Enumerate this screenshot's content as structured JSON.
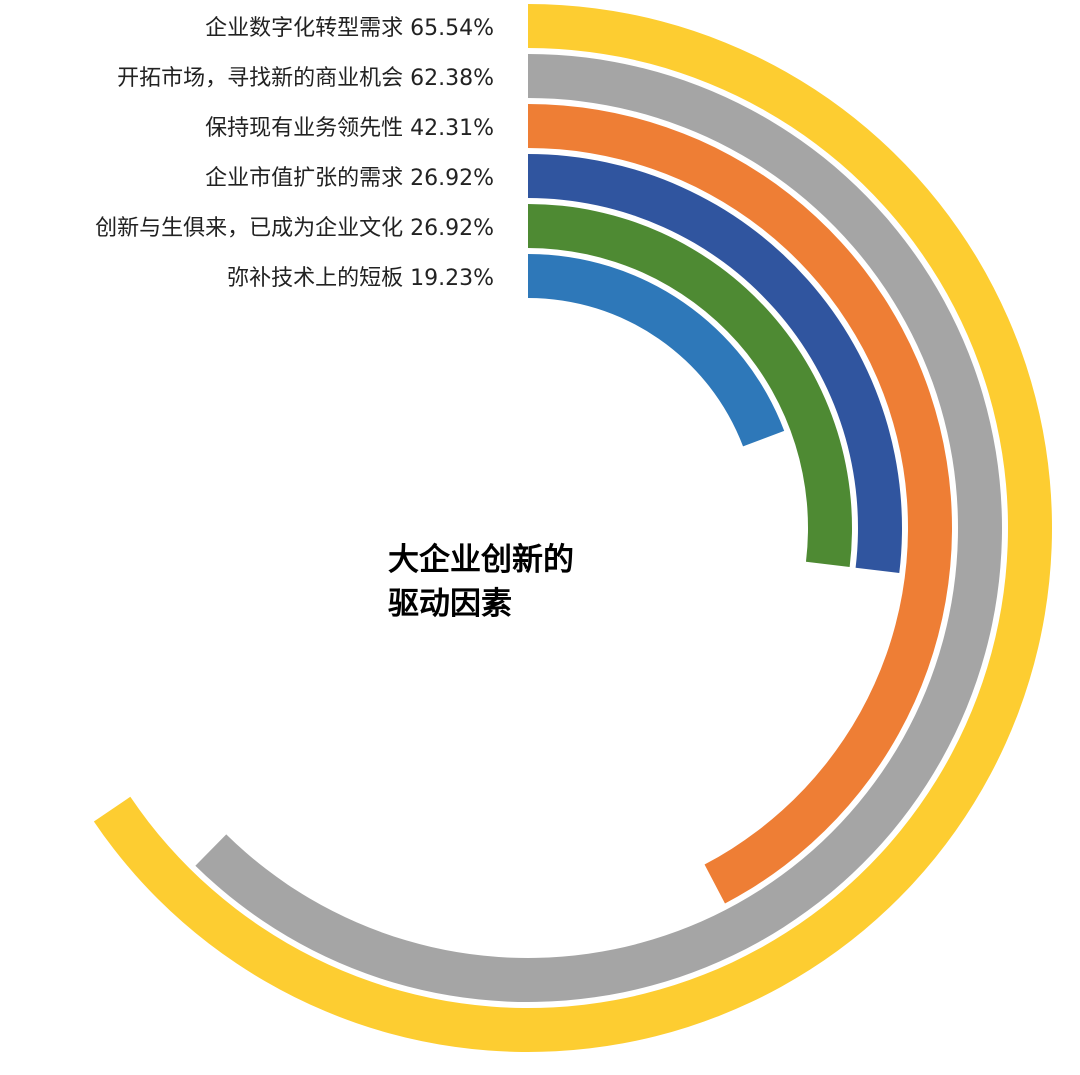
{
  "chart_data": {
    "type": "radial-bar",
    "title": "大企业创新的驱动因素",
    "title_lines": [
      "大企业创新的",
      "驱动因素"
    ],
    "unit": "%",
    "series": [
      {
        "label": "企业数字化转型需求",
        "value": 65.54,
        "value_text": "65.54%",
        "color": "#FDCD31"
      },
      {
        "label": "开拓市场，寻找新的商业机会",
        "value": 62.38,
        "value_text": "62.38%",
        "color": "#A5A5A5"
      },
      {
        "label": "保持现有业务领先性",
        "value": 42.31,
        "value_text": "42.31%",
        "color": "#EE7E35"
      },
      {
        "label": "企业市值扩张的需求",
        "value": 26.92,
        "value_text": "26.92%",
        "color": "#30559F"
      },
      {
        "label": "创新与生俱来，已成为企业文化",
        "value": 26.92,
        "value_text": "26.92%",
        "color": "#4E8A33"
      },
      {
        "label": "弥补技术上的短板",
        "value": 19.23,
        "value_text": "19.23%",
        "color": "#2E78B9"
      }
    ],
    "full_circle_value": 100
  }
}
